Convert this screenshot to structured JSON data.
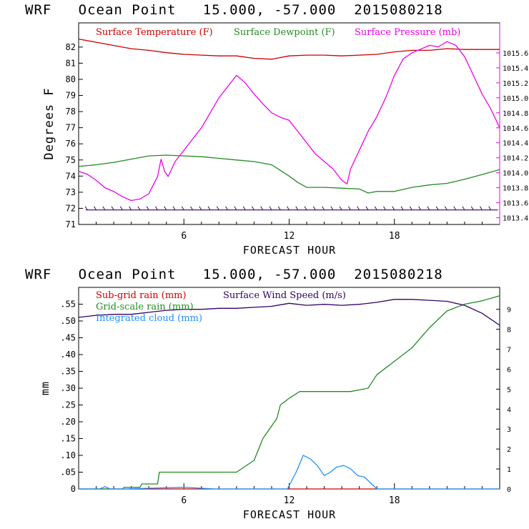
{
  "chart_data": [
    {
      "type": "line",
      "title": "WRF   Ocean Point   15.000, -57.000  2015080218",
      "xlabel": "FORECAST HOUR",
      "ylabel": "Degrees F",
      "xlim": [
        0,
        24
      ],
      "ylim": [
        71,
        83.5
      ],
      "y2lim": [
        1013.31,
        1016.0
      ],
      "x_ticks": [
        6,
        12,
        18
      ],
      "x_tick_labels": [
        "6",
        "12",
        "18"
      ],
      "y_ticks": [
        71,
        72,
        73,
        74,
        75,
        76,
        77,
        78,
        79,
        80,
        81,
        82
      ],
      "y_tick_labels": [
        "71",
        "72",
        "73",
        "74",
        "75",
        "76",
        "77",
        "78",
        "79",
        "80",
        "81",
        "82"
      ],
      "y2_ticks": [
        1013.4,
        1013.6,
        1013.8,
        1014.0,
        1014.2,
        1014.4,
        1014.6,
        1014.8,
        1015.0,
        1015.2,
        1015.4,
        1015.6
      ],
      "y2_tick_labels": [
        "1013.4",
        "1013.6",
        "1013.8",
        "1014.0",
        "1014.2",
        "1014.4",
        "1014.6",
        "1014.8",
        "1015.0",
        "1015.2",
        "1015.4",
        "1015.6"
      ],
      "wind_barb_row_value": 71.9,
      "series": [
        {
          "name": "Surface Temperature (F)",
          "color": "#cc0000",
          "axis": "left",
          "x": [
            0,
            1,
            2,
            3,
            4,
            5,
            6,
            7,
            8,
            9,
            10,
            11,
            12,
            13,
            14,
            15,
            16,
            17,
            18,
            19,
            20,
            21,
            22,
            23,
            24
          ],
          "y": [
            82.5,
            82.3,
            82.1,
            81.9,
            81.8,
            81.65,
            81.55,
            81.5,
            81.45,
            81.45,
            81.3,
            81.25,
            81.45,
            81.5,
            81.5,
            81.45,
            81.5,
            81.55,
            81.7,
            81.8,
            81.8,
            81.9,
            81.85,
            81.85,
            81.85
          ]
        },
        {
          "name": "Surface Dewpoint (F)",
          "color": "#228b22",
          "axis": "left",
          "x": [
            0,
            1,
            2,
            3,
            4,
            5,
            6,
            7,
            8,
            9,
            10,
            11,
            12,
            12.5,
            13,
            14,
            15,
            16,
            16.5,
            17,
            18,
            19,
            20,
            21,
            22,
            23,
            24
          ],
          "y": [
            74.6,
            74.7,
            74.85,
            75.05,
            75.25,
            75.3,
            75.25,
            75.2,
            75.1,
            75.0,
            74.9,
            74.7,
            74.0,
            73.6,
            73.3,
            73.3,
            73.25,
            73.2,
            72.95,
            73.05,
            73.05,
            73.3,
            73.45,
            73.55,
            73.8,
            74.1,
            74.4
          ]
        },
        {
          "name": "Surface Pressure (mb)",
          "color": "#ee00ee",
          "axis": "right",
          "x": [
            0,
            0.5,
            1,
            1.5,
            2,
            2.5,
            3,
            3.5,
            4,
            4.5,
            4.7,
            4.9,
            5.1,
            5.5,
            6,
            6.5,
            7,
            7.5,
            8,
            8.5,
            9,
            9.5,
            10,
            10.5,
            11,
            11.5,
            12,
            12.5,
            13,
            13.5,
            14,
            14.5,
            15,
            15.3,
            15.5,
            16,
            16.5,
            17,
            17.5,
            18,
            18.5,
            19,
            19.5,
            20,
            20.5,
            21,
            21.5,
            22,
            22.5,
            23,
            23.5,
            24
          ],
          "y": [
            1014.02,
            1013.98,
            1013.9,
            1013.8,
            1013.75,
            1013.68,
            1013.63,
            1013.65,
            1013.72,
            1013.95,
            1014.18,
            1014.02,
            1013.95,
            1014.15,
            1014.3,
            1014.45,
            1014.6,
            1014.8,
            1015.0,
            1015.15,
            1015.3,
            1015.2,
            1015.05,
            1014.92,
            1014.8,
            1014.74,
            1014.7,
            1014.55,
            1014.4,
            1014.25,
            1014.15,
            1014.05,
            1013.9,
            1013.85,
            1014.05,
            1014.3,
            1014.55,
            1014.75,
            1015.0,
            1015.3,
            1015.52,
            1015.6,
            1015.65,
            1015.7,
            1015.68,
            1015.75,
            1015.7,
            1015.55,
            1015.3,
            1015.05,
            1014.85,
            1014.6
          ]
        }
      ],
      "legend": [
        "Surface Temperature (F)",
        "Surface Dewpoint (F)",
        "Surface Pressure (mb)"
      ]
    },
    {
      "type": "line",
      "title": "WRF   Ocean Point   15.000, -57.000  2015080218",
      "xlabel": "FORECAST HOUR",
      "ylabel": "mm",
      "xlim": [
        0,
        24
      ],
      "ylim": [
        0,
        0.6
      ],
      "y2lim": [
        0,
        10.1
      ],
      "x_ticks": [
        6,
        12,
        18
      ],
      "x_tick_labels": [
        "6",
        "12",
        "18"
      ],
      "y_ticks": [
        0,
        0.05,
        0.1,
        0.15,
        0.2,
        0.25,
        0.3,
        0.35,
        0.4,
        0.45,
        0.5,
        0.55
      ],
      "y_tick_labels": [
        "0",
        ".05",
        ".10",
        ".15",
        ".20",
        ".25",
        ".30",
        ".35",
        ".40",
        ".45",
        ".50",
        ".55"
      ],
      "y2_ticks": [
        0,
        1,
        2,
        3,
        4,
        5,
        6,
        7,
        8,
        9
      ],
      "y2_tick_labels": [
        "0",
        "1",
        "2",
        "3",
        "4",
        "5",
        "6",
        "7",
        "8",
        "9"
      ],
      "series": [
        {
          "name": "Sub-grid rain (mm)",
          "color": "#cc0000",
          "axis": "left",
          "x": [
            0,
            24
          ],
          "y": [
            0,
            0
          ]
        },
        {
          "name": "Grid-scale rain (mm)",
          "color": "#228b22",
          "axis": "left",
          "x": [
            0,
            0.4,
            1.5,
            2.5,
            2.6,
            3.5,
            3.6,
            4.5,
            4.6,
            5.5,
            6,
            7,
            7.5,
            7.9,
            8,
            9,
            10,
            10.5,
            11.3,
            11.5,
            12,
            12.3,
            12.6,
            12.9,
            13.5,
            14,
            14.5,
            15,
            15.5,
            16,
            16.5,
            17,
            18,
            19,
            20,
            21,
            22,
            23,
            24
          ],
          "y": [
            0,
            0,
            0,
            0,
            0.005,
            0.005,
            0.015,
            0.015,
            0.05,
            0.05,
            0.05,
            0.05,
            0.05,
            0.05,
            0.05,
            0.05,
            0.085,
            0.15,
            0.21,
            0.25,
            0.27,
            0.28,
            0.29,
            0.29,
            0.29,
            0.29,
            0.29,
            0.29,
            0.29,
            0.295,
            0.3,
            0.34,
            0.38,
            0.42,
            0.48,
            0.53,
            0.55,
            0.56,
            0.575
          ]
        },
        {
          "name": "Integrated cloud (mm)",
          "color": "#1e90ff",
          "axis": "left",
          "x": [
            0,
            1.2,
            1.5,
            1.8,
            2.5,
            4.5,
            6,
            7.8,
            11.9,
            12.4,
            12.8,
            13.2,
            13.6,
            14,
            14.3,
            14.7,
            15.1,
            15.5,
            15.9,
            16.3,
            16.7,
            17,
            24
          ],
          "y": [
            0,
            0,
            0.007,
            0,
            0,
            0.003,
            0.005,
            0,
            0,
            0.05,
            0.1,
            0.09,
            0.07,
            0.04,
            0.048,
            0.065,
            0.07,
            0.06,
            0.04,
            0.035,
            0.015,
            0,
            0
          ]
        },
        {
          "name": "Surface Wind Speed (m/s)",
          "color": "#330066",
          "axis": "right",
          "x": [
            0,
            1,
            2,
            3,
            4,
            5,
            6,
            7,
            8,
            9,
            10,
            11,
            12,
            13,
            14,
            15,
            16,
            17,
            18,
            19,
            20,
            21,
            22,
            23,
            24
          ],
          "y": [
            8.6,
            8.7,
            8.75,
            8.75,
            8.85,
            8.95,
            9.0,
            9.0,
            9.05,
            9.05,
            9.1,
            9.15,
            9.3,
            9.2,
            9.25,
            9.2,
            9.25,
            9.35,
            9.5,
            9.5,
            9.45,
            9.4,
            9.2,
            8.8,
            8.2
          ]
        }
      ],
      "legend": [
        "Sub-grid rain (mm)",
        "Grid-scale rain (mm)",
        "Integrated cloud (mm)",
        "Surface Wind Speed (m/s)"
      ]
    }
  ]
}
